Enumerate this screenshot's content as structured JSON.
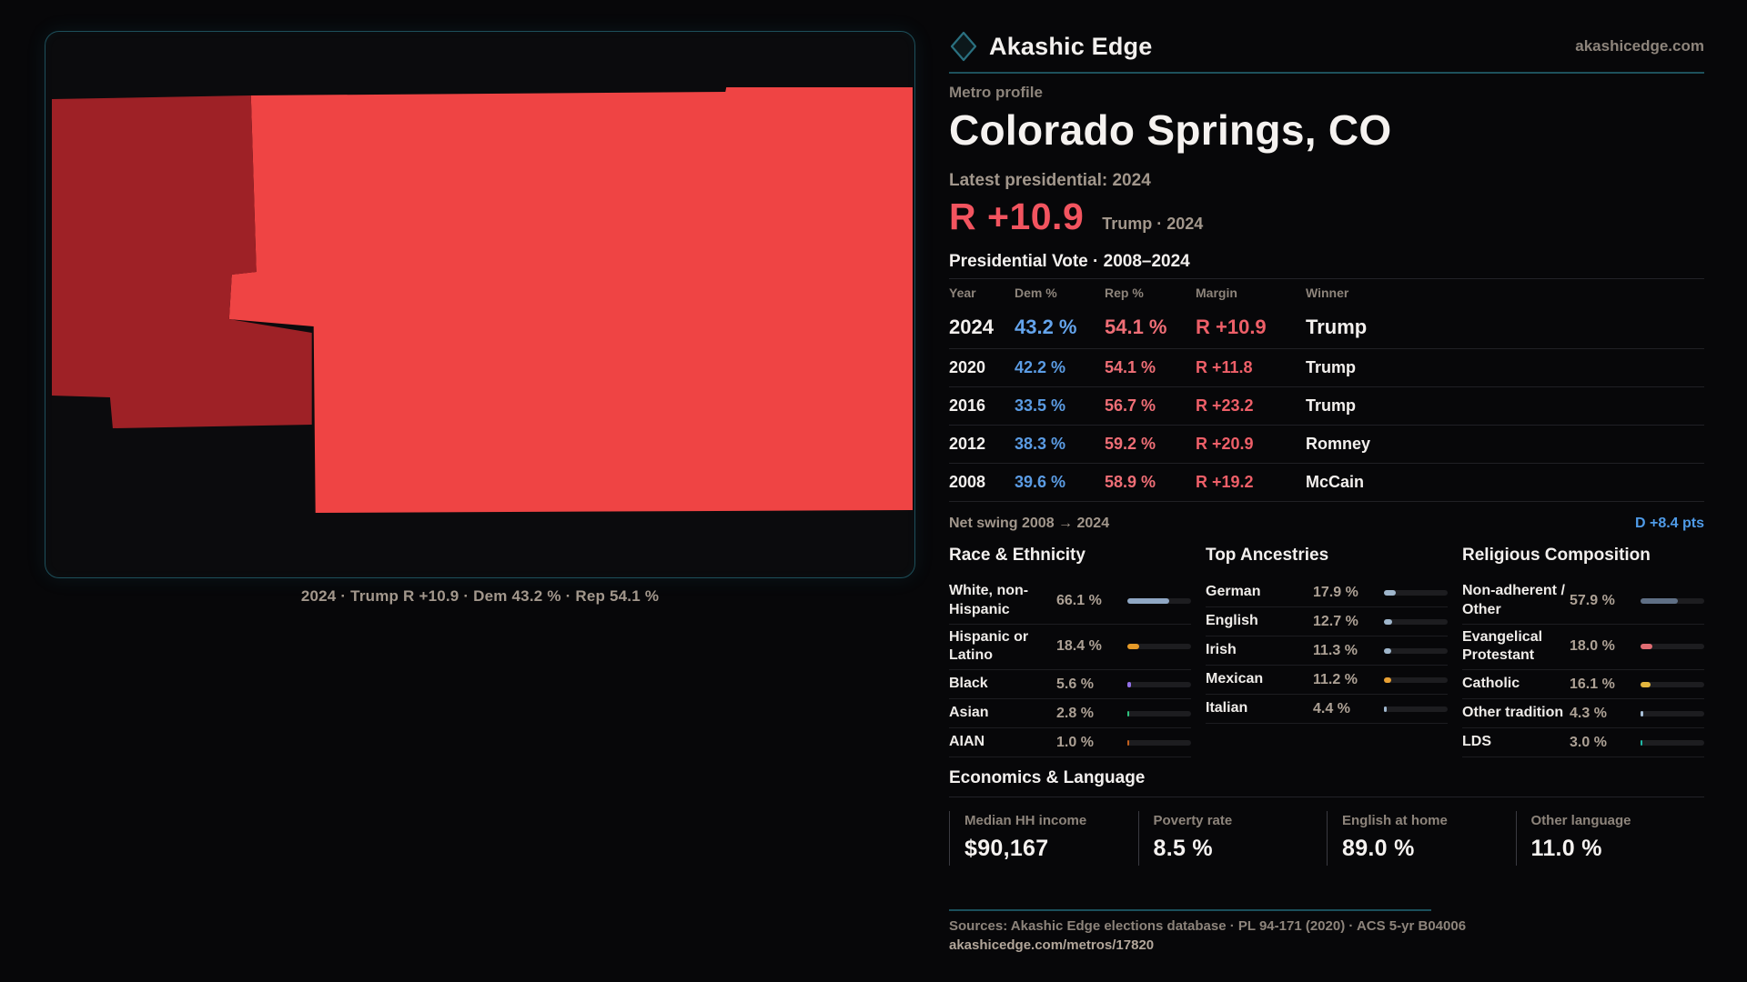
{
  "brand": {
    "name": "Akashic Edge",
    "domain": "akashicedge.com"
  },
  "map": {
    "caption": "2024 · Trump R +10.9 · Dem 43.2 % · Rep 54.1 %",
    "colors": {
      "strong_rep": "#ef4444",
      "lean_rep": "#9e2126"
    }
  },
  "profile": {
    "kicker": "Metro profile",
    "title": "Colorado Springs, CO",
    "latest_label": "Latest presidential: 2024",
    "latest_margin": "R +10.9",
    "latest_detail": "Trump · 2024"
  },
  "vote_table": {
    "title": "Presidential Vote · 2008–2024",
    "columns": [
      "Year",
      "Dem %",
      "Rep %",
      "Margin",
      "Winner"
    ],
    "rows": [
      {
        "year": "2024",
        "dem": "43.2 %",
        "rep": "54.1 %",
        "margin": "R +10.9",
        "winner": "Trump",
        "emphasis": true
      },
      {
        "year": "2020",
        "dem": "42.2 %",
        "rep": "54.1 %",
        "margin": "R +11.8",
        "winner": "Trump",
        "emphasis": false
      },
      {
        "year": "2016",
        "dem": "33.5 %",
        "rep": "56.7 %",
        "margin": "R +23.2",
        "winner": "Trump",
        "emphasis": false
      },
      {
        "year": "2012",
        "dem": "38.3 %",
        "rep": "59.2 %",
        "margin": "R +20.9",
        "winner": "Romney",
        "emphasis": false
      },
      {
        "year": "2008",
        "dem": "39.6 %",
        "rep": "58.9 %",
        "margin": "R +19.2",
        "winner": "McCain",
        "emphasis": false
      }
    ],
    "net_swing_label": "Net swing 2008 → 2024",
    "net_swing_value": "D +8.4 pts"
  },
  "chart_data": [
    {
      "type": "table",
      "title": "Presidential Vote · 2008–2024",
      "columns": [
        "Year",
        "Dem %",
        "Rep %",
        "Margin",
        "Winner"
      ],
      "rows": [
        [
          "2024",
          43.2,
          54.1,
          "R +10.9",
          "Trump"
        ],
        [
          "2020",
          42.2,
          54.1,
          "R +11.8",
          "Trump"
        ],
        [
          "2016",
          33.5,
          56.7,
          "R +23.2",
          "Trump"
        ],
        [
          "2012",
          38.3,
          59.2,
          "R +20.9",
          "Romney"
        ],
        [
          "2008",
          39.6,
          58.9,
          "R +19.2",
          "McCain"
        ]
      ]
    },
    {
      "type": "bar",
      "title": "Race & Ethnicity",
      "categories": [
        "White, non-Hispanic",
        "Hispanic or Latino",
        "Black",
        "Asian",
        "AIAN"
      ],
      "values": [
        66.1,
        18.4,
        5.6,
        2.8,
        1.0
      ],
      "xlim": [
        0,
        100
      ]
    },
    {
      "type": "bar",
      "title": "Top Ancestries",
      "categories": [
        "German",
        "English",
        "Irish",
        "Mexican",
        "Italian"
      ],
      "values": [
        17.9,
        12.7,
        11.3,
        11.2,
        4.4
      ],
      "xlim": [
        0,
        100
      ]
    },
    {
      "type": "bar",
      "title": "Religious Composition",
      "categories": [
        "Non-adherent / Other",
        "Evangelical Protestant",
        "Catholic",
        "Other tradition",
        "LDS"
      ],
      "values": [
        57.9,
        18.0,
        16.1,
        4.3,
        3.0
      ],
      "xlim": [
        0,
        100
      ]
    }
  ],
  "demographics": [
    {
      "title": "Race & Ethnicity",
      "rows": [
        {
          "label": "White, non-Hispanic",
          "value": "66.1 %",
          "pct": 66.1,
          "color": "#8fa7c4"
        },
        {
          "label": "Hispanic or Latino",
          "value": "18.4 %",
          "pct": 18.4,
          "color": "#e59a28"
        },
        {
          "label": "Black",
          "value": "5.6 %",
          "pct": 5.6,
          "color": "#9370e8"
        },
        {
          "label": "Asian",
          "value": "2.8 %",
          "pct": 2.8,
          "color": "#2ec27e"
        },
        {
          "label": "AIAN",
          "value": "1.0 %",
          "pct": 1.0,
          "color": "#c2601d"
        }
      ]
    },
    {
      "title": "Top Ancestries",
      "rows": [
        {
          "label": "German",
          "value": "17.9 %",
          "pct": 17.9,
          "color": "#9fb6cc"
        },
        {
          "label": "English",
          "value": "12.7 %",
          "pct": 12.7,
          "color": "#9fb6cc"
        },
        {
          "label": "Irish",
          "value": "11.3 %",
          "pct": 11.3,
          "color": "#9fb6cc"
        },
        {
          "label": "Mexican",
          "value": "11.2 %",
          "pct": 11.2,
          "color": "#e8a033"
        },
        {
          "label": "Italian",
          "value": "4.4 %",
          "pct": 4.4,
          "color": "#9fb6cc"
        }
      ]
    },
    {
      "title": "Religious Composition",
      "rows": [
        {
          "label": "Non-adherent / Other",
          "value": "57.9 %",
          "pct": 57.9,
          "color": "#5f6f85"
        },
        {
          "label": "Evangelical Protestant",
          "value": "18.0 %",
          "pct": 18.0,
          "color": "#e06c72"
        },
        {
          "label": "Catholic",
          "value": "16.1 %",
          "pct": 16.1,
          "color": "#e3b63e"
        },
        {
          "label": "Other tradition",
          "value": "4.3 %",
          "pct": 4.3,
          "color": "#a8c0d8"
        },
        {
          "label": "LDS",
          "value": "3.0 %",
          "pct": 3.0,
          "color": "#1fb8a6"
        }
      ]
    }
  ],
  "economics": {
    "title": "Economics & Language",
    "stats": [
      {
        "label": "Median HH income",
        "value": "$90,167"
      },
      {
        "label": "Poverty rate",
        "value": "8.5 %"
      },
      {
        "label": "English at home",
        "value": "89.0 %"
      },
      {
        "label": "Other language",
        "value": "11.0 %"
      }
    ]
  },
  "footer": {
    "sources": "Sources: Akashic Edge elections database · PL 94-171 (2020) · ACS 5-yr B04006",
    "permalink": "akashicedge.com/metros/17820"
  }
}
